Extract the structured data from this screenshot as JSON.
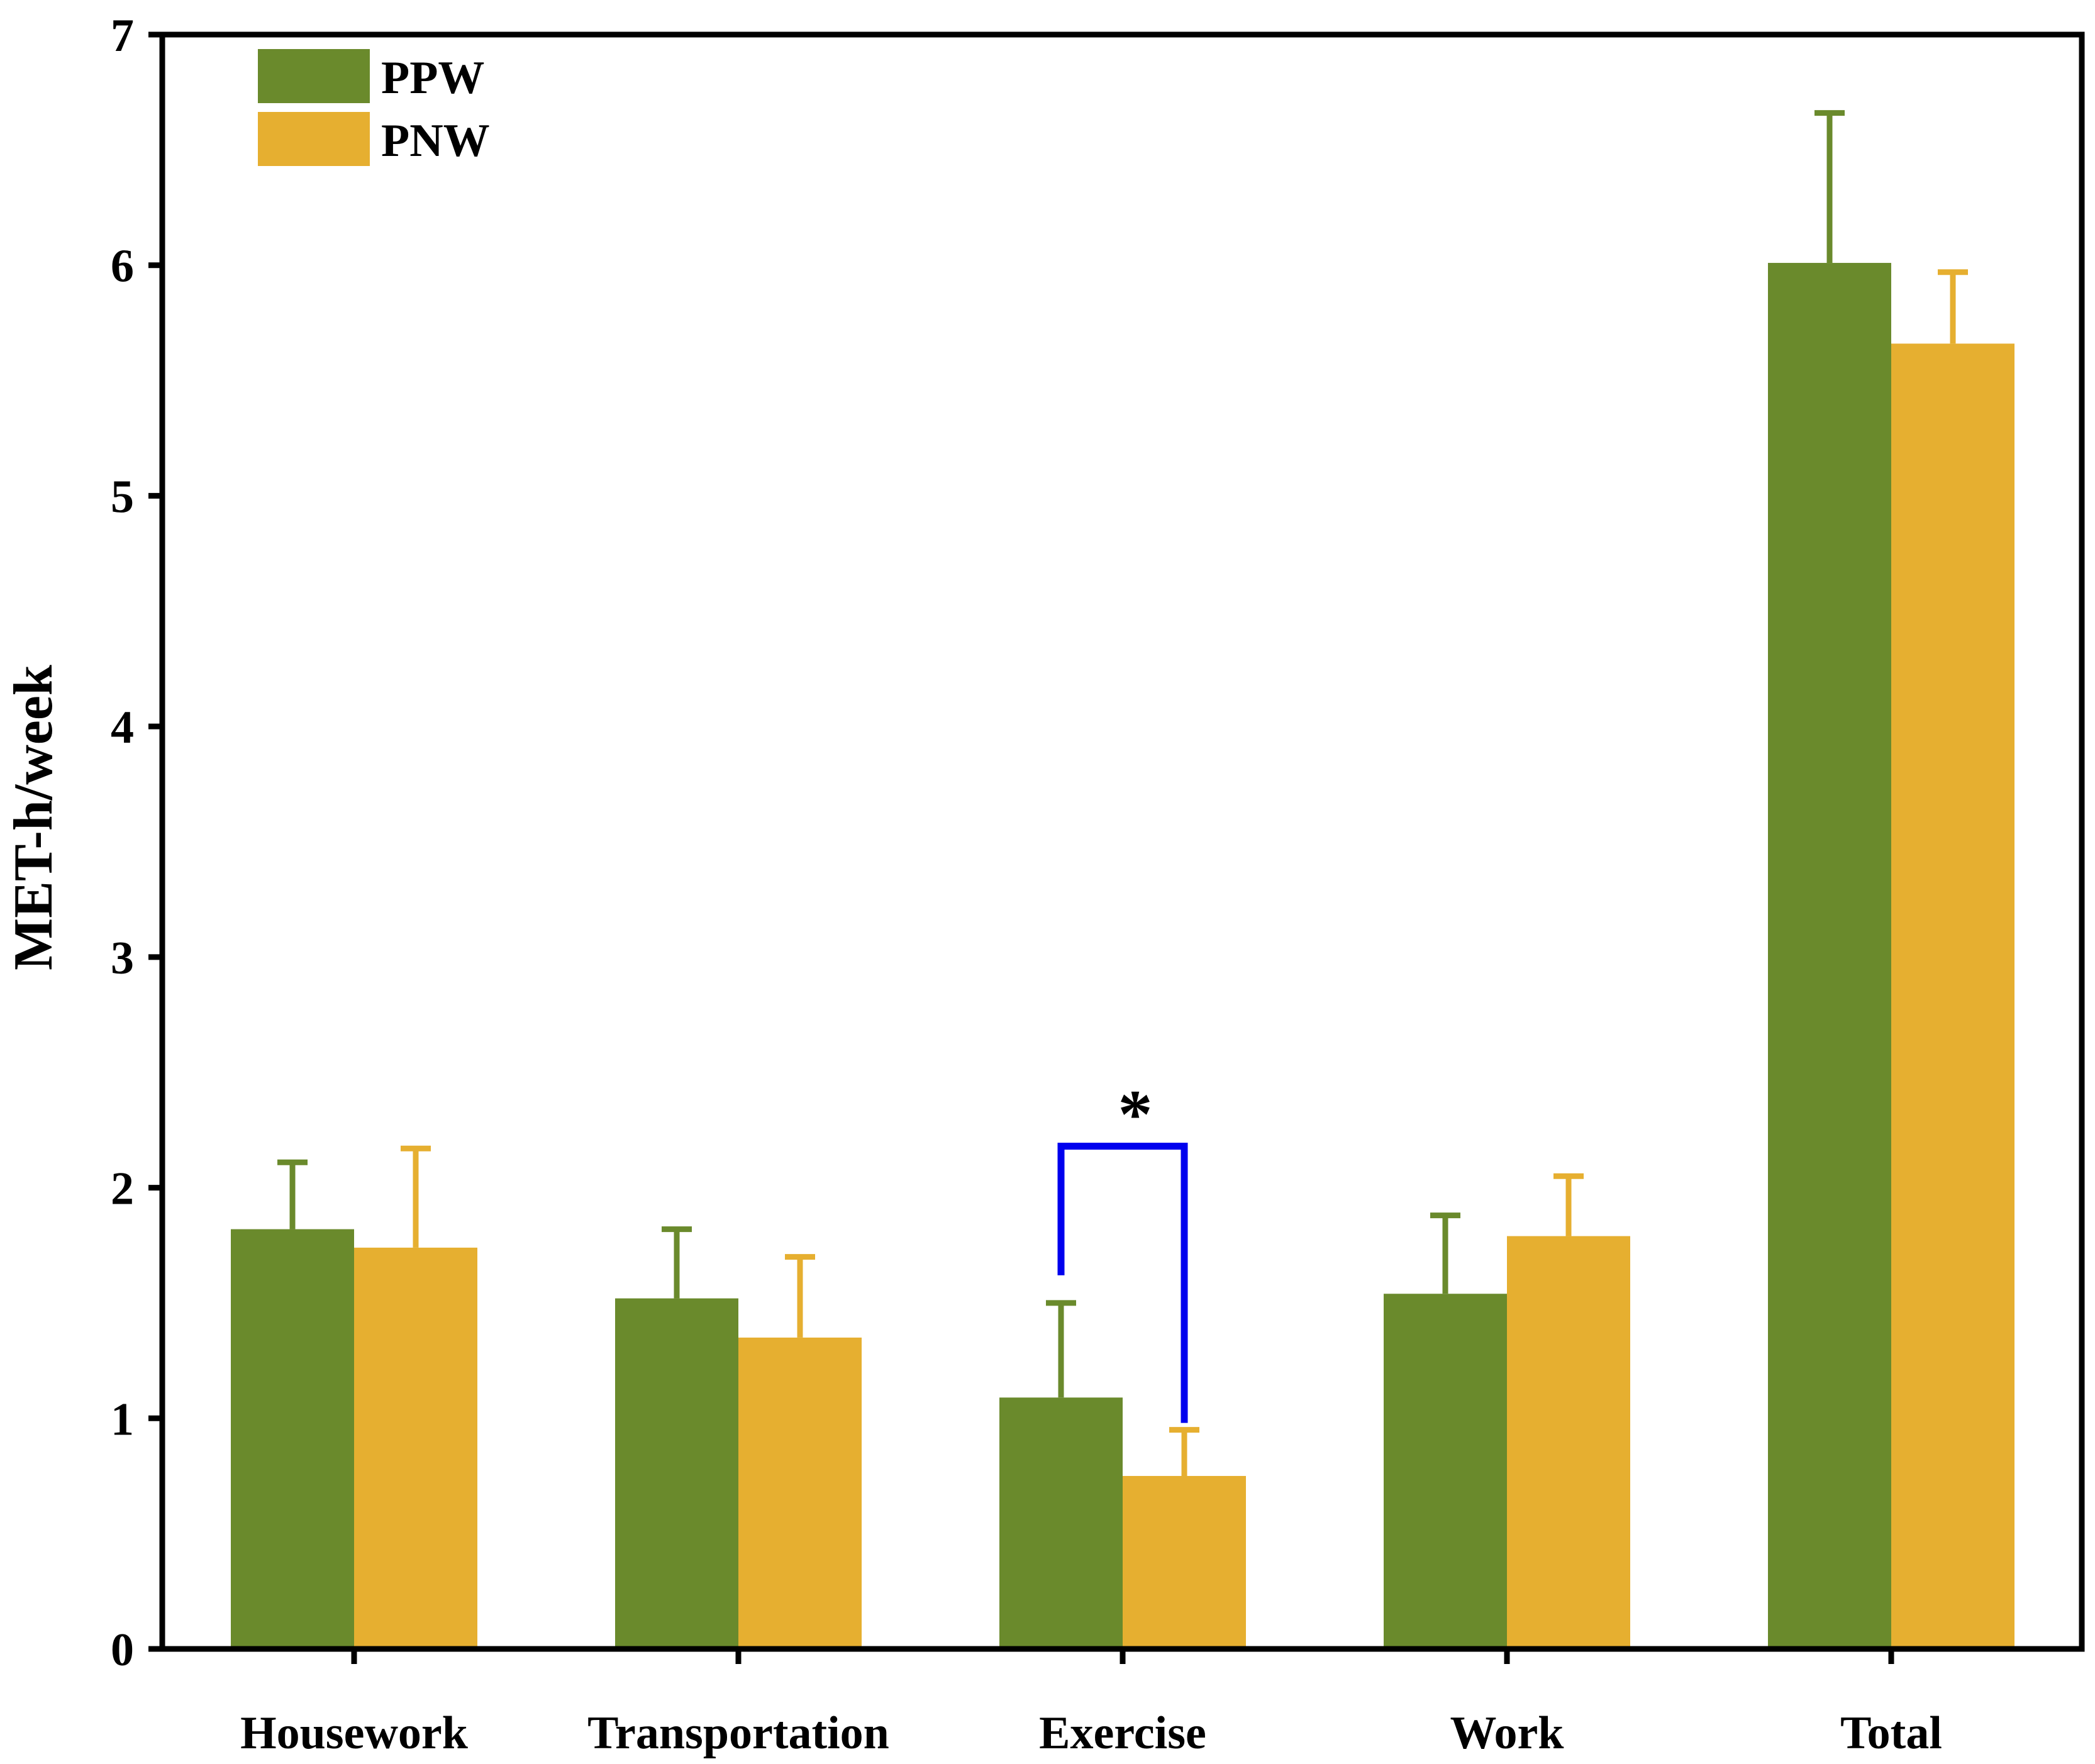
{
  "chart_data": {
    "type": "bar",
    "title": "",
    "xlabel": "",
    "ylabel": "MET-h/week",
    "ylim": [
      0,
      7
    ],
    "yticks": [
      "0",
      "1",
      "2",
      "3",
      "4",
      "5",
      "6",
      "7"
    ],
    "categories": [
      "Housework",
      "Transportation",
      "Exercise",
      "Work",
      "Total"
    ],
    "series": [
      {
        "name": "PPW",
        "color": "#6a8a2c",
        "values": [
          1.82,
          1.52,
          1.09,
          1.54,
          6.01
        ],
        "errors": [
          0.29,
          0.3,
          0.41,
          0.34,
          0.65
        ]
      },
      {
        "name": "PNW",
        "color": "#e6af30",
        "values": [
          1.74,
          1.35,
          0.75,
          1.79,
          5.66
        ],
        "errors": [
          0.43,
          0.35,
          0.2,
          0.26,
          0.31
        ]
      }
    ],
    "legend": {
      "position": "top-left"
    },
    "annotations": [
      {
        "type": "significance",
        "category": "Exercise",
        "label": "*",
        "bracket_level": 2.18,
        "left_end": 1.62,
        "right_end": 0.98,
        "color": "#0000ee"
      }
    ]
  }
}
